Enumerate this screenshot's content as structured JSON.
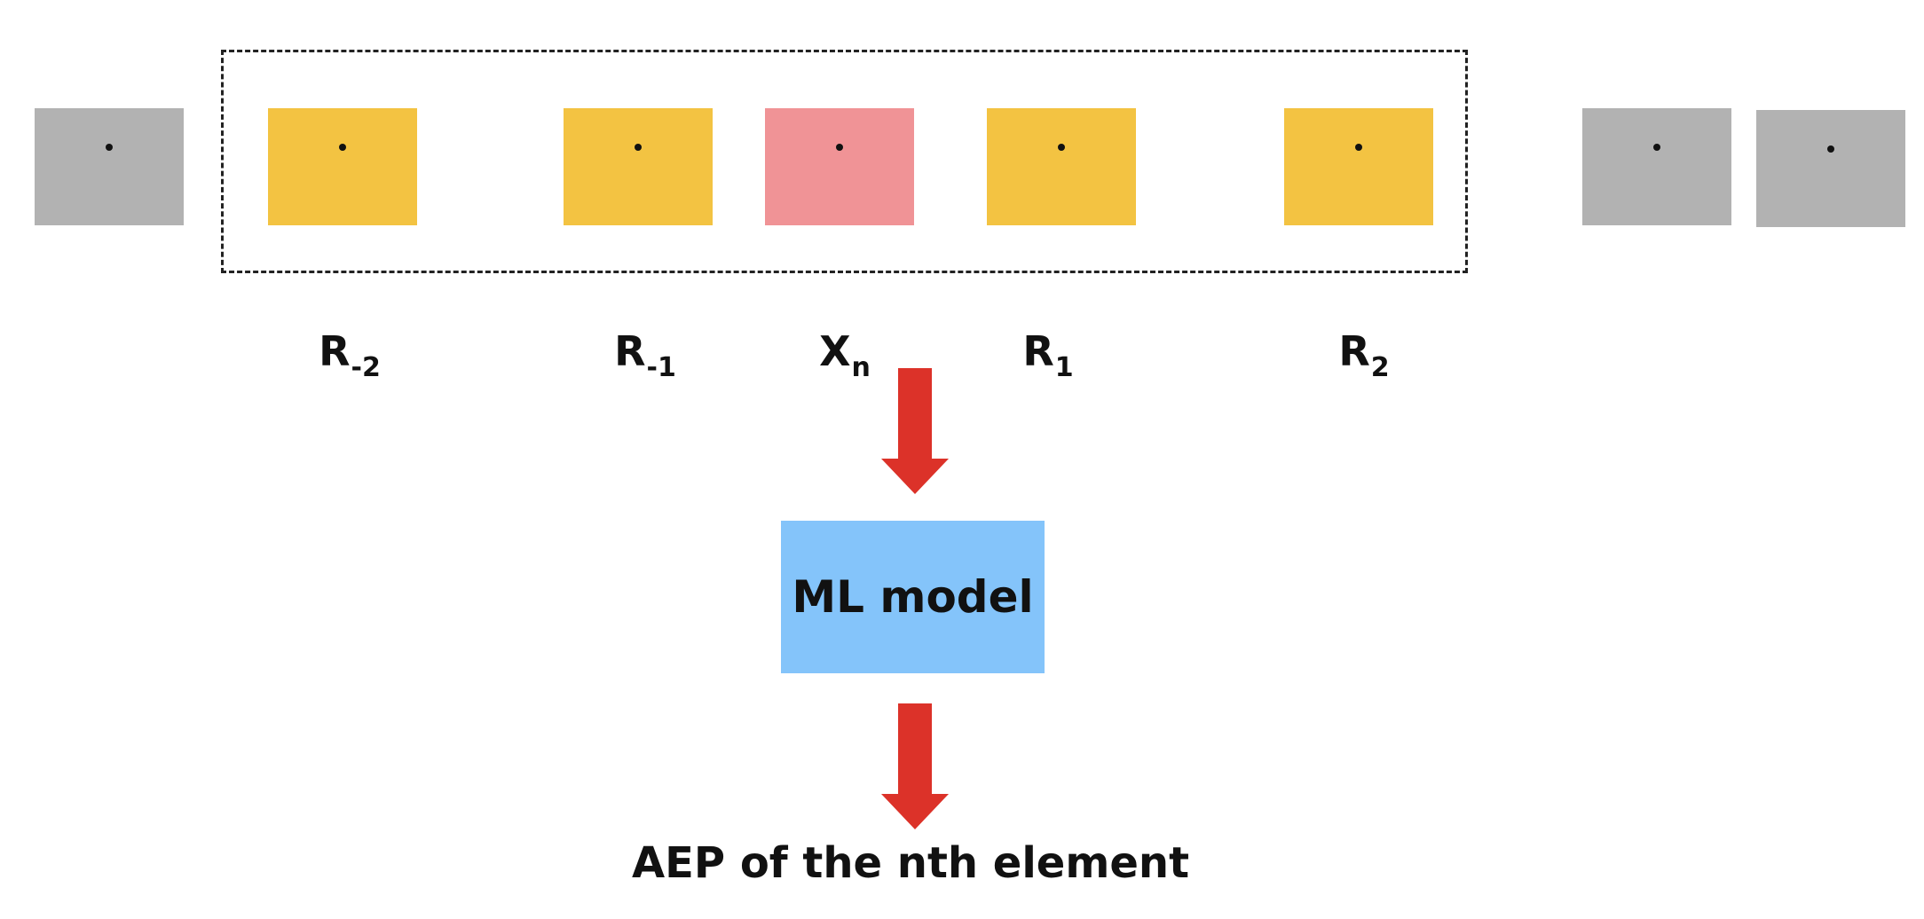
{
  "colors": {
    "outside": "#b2b2b2",
    "neighbor": "#f3c342",
    "target": "#f09396",
    "model": "#84c4fa",
    "arrow": "#dc3229",
    "frame": "#222222"
  },
  "labels": {
    "r_m2": {
      "base": "R",
      "sub": "-2"
    },
    "r_m1": {
      "base": "R",
      "sub": "-1"
    },
    "x_n": {
      "base": "X",
      "sub": "n"
    },
    "r_1": {
      "base": "R",
      "sub": "1"
    },
    "r_2": {
      "base": "R",
      "sub": "2"
    }
  },
  "model": {
    "label": "ML model"
  },
  "output": {
    "label": "AEP of the nth element"
  }
}
